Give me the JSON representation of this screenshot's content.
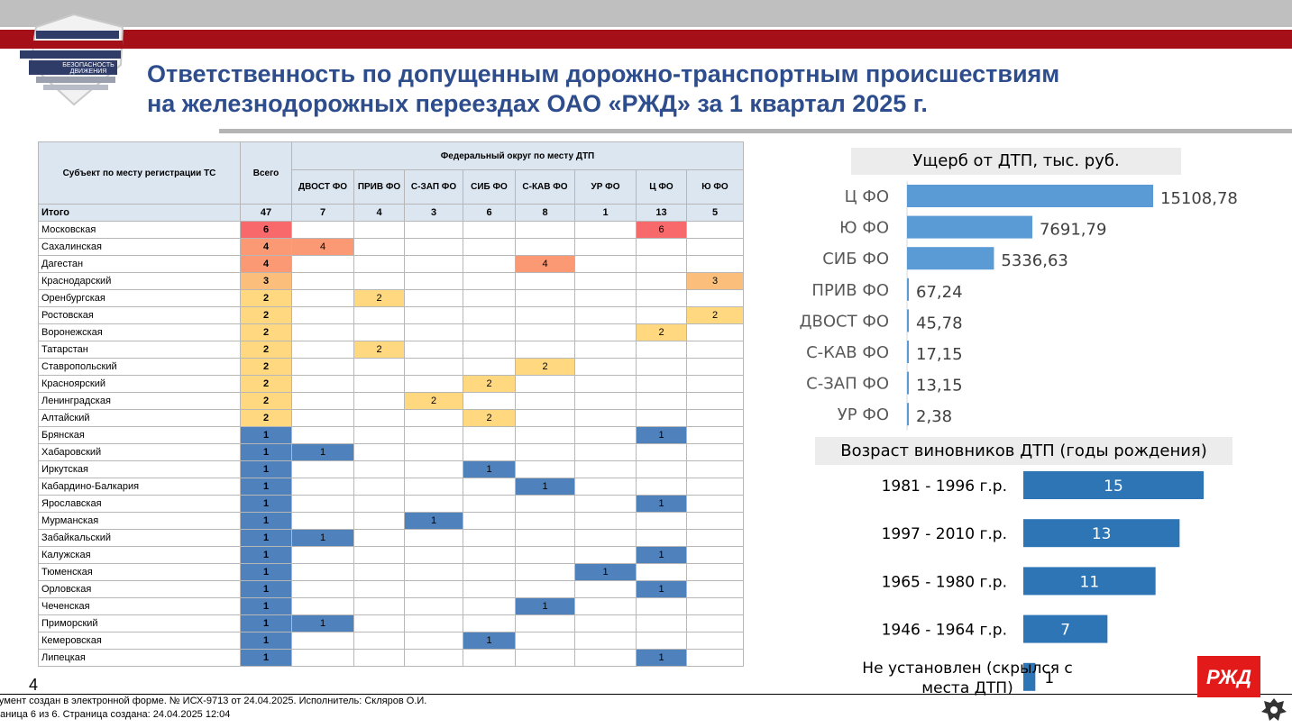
{
  "header": {
    "logo_line1": "БЕЗОПАСНОСТЬ",
    "logo_line2": "ДВИЖЕНИЯ",
    "title_line1": "Ответственность по допущенным дорожно-транспортным происшествиям",
    "title_line2": "на железнодорожных переездах ОАО «РЖД» за 1 квартал 2025 г."
  },
  "table": {
    "col_subject": "Субъект по месту регистрации ТС",
    "col_total": "Всего",
    "col_group": "Федеральный округ по месту ДТП",
    "districts": [
      "ДВОСТ ФО",
      "ПРИВ ФО",
      "С-ЗАП ФО",
      "СИБ ФО",
      "С-КАВ ФО",
      "УР ФО",
      "Ц ФО",
      "Ю ФО"
    ],
    "total_row": {
      "name": "Итого",
      "total": "47",
      "values": [
        "7",
        "4",
        "3",
        "6",
        "8",
        "1",
        "13",
        "5"
      ]
    },
    "rows": [
      {
        "name": "Московская",
        "total": 6,
        "district": 6
      },
      {
        "name": "Сахалинская",
        "total": 4,
        "district": 0
      },
      {
        "name": "Дагестан",
        "total": 4,
        "district": 4
      },
      {
        "name": "Краснодарский",
        "total": 3,
        "district": 7
      },
      {
        "name": "Оренбургская",
        "total": 2,
        "district": 1
      },
      {
        "name": "Ростовская",
        "total": 2,
        "district": 7
      },
      {
        "name": "Воронежская",
        "total": 2,
        "district": 6
      },
      {
        "name": "Татарстан",
        "total": 2,
        "district": 1
      },
      {
        "name": "Ставропольский",
        "total": 2,
        "district": 4
      },
      {
        "name": "Красноярский",
        "total": 2,
        "district": 3
      },
      {
        "name": "Ленинградская",
        "total": 2,
        "district": 2
      },
      {
        "name": "Алтайский",
        "total": 2,
        "district": 3
      },
      {
        "name": "Брянская",
        "total": 1,
        "district": 6
      },
      {
        "name": "Хабаровский",
        "total": 1,
        "district": 0
      },
      {
        "name": "Иркутская",
        "total": 1,
        "district": 3
      },
      {
        "name": "Кабардино-Балкария",
        "total": 1,
        "district": 4
      },
      {
        "name": "Ярославская",
        "total": 1,
        "district": 6
      },
      {
        "name": "Мурманская",
        "total": 1,
        "district": 2
      },
      {
        "name": "Забайкальский",
        "total": 1,
        "district": 0
      },
      {
        "name": "Калужская",
        "total": 1,
        "district": 6
      },
      {
        "name": "Тюменская",
        "total": 1,
        "district": 5
      },
      {
        "name": "Орловская",
        "total": 1,
        "district": 6
      },
      {
        "name": "Чеченская",
        "total": 1,
        "district": 4
      },
      {
        "name": "Приморский",
        "total": 1,
        "district": 0
      },
      {
        "name": "Кемеровская",
        "total": 1,
        "district": 3
      },
      {
        "name": "Липецкая",
        "total": 1,
        "district": 6
      }
    ],
    "colors": {
      "6": "#f8696b",
      "4": "#fa9973",
      "3": "#fcbf7b",
      "2": "#ffd880",
      "1": "#4f81bd"
    }
  },
  "chart_data": [
    {
      "type": "bar",
      "orientation": "horizontal",
      "title": "Ущерб от ДТП, тыс. руб.",
      "categories": [
        "Ц ФО",
        "Ю ФО",
        "СИБ ФО",
        "ПРИВ ФО",
        "ДВОСТ ФО",
        "С-КАВ ФО",
        "С-ЗАП ФО",
        "УР ФО"
      ],
      "values": [
        15108.78,
        7691.79,
        5336.63,
        67.24,
        45.78,
        17.15,
        13.15,
        2.38
      ],
      "labels": [
        "15108,78",
        "7691,79",
        "5336,63",
        "67,24",
        "45,78",
        "17,15",
        "13,15",
        "2,38"
      ],
      "color": "#5b9bd5"
    },
    {
      "type": "bar",
      "orientation": "horizontal",
      "title": "Возраст виновников ДТП (годы рождения)",
      "categories": [
        "1981 - 1996 г.р.",
        "1997 - 2010 г.р.",
        "1965 - 1980 г.р.",
        "1946 - 1964 г.р.",
        "Не установлен (скрылся с места ДТП)"
      ],
      "category_lines": [
        [
          "1981 - 1996 г.р."
        ],
        [
          "1997 - 2010 г.р."
        ],
        [
          "1965 - 1980 г.р."
        ],
        [
          "1946 - 1964 г.р."
        ],
        [
          "Не установлен (скрылся с",
          "места ДТП)"
        ]
      ],
      "values": [
        15,
        13,
        11,
        7,
        1
      ],
      "color": "#2e75b6"
    }
  ],
  "footer": {
    "page_number": "4",
    "line1": "кумент создан в электронной форме. № ИСХ-9713 от 24.04.2025. Исполнитель: Скляров О.И.",
    "line2": "раница 6 из 6. Страница создана: 24.04.2025 12:04",
    "brand_logo": "РЖД"
  }
}
